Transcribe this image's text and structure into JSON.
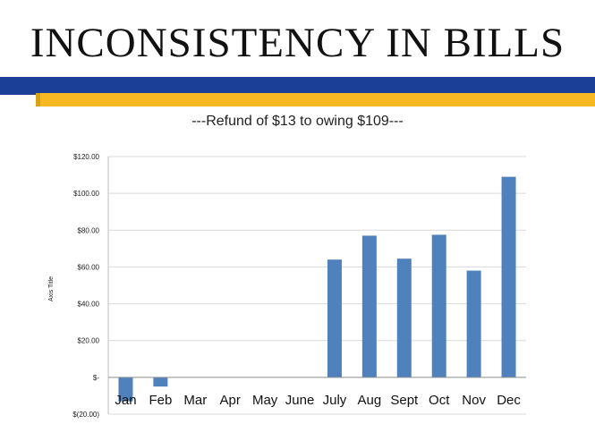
{
  "slide": {
    "title": "INCONSISTENCY IN BILLS",
    "subtitle": "---Refund of $13 to owing $109---"
  },
  "colors": {
    "band_blue": "#1b3f95",
    "band_gold": "#f8b822",
    "bar": "#4f81bd",
    "gridline": "#d9d9d9"
  },
  "chart_data": {
    "type": "bar",
    "categories": [
      "Jan",
      "Feb",
      "Mar",
      "Apr",
      "May",
      "June",
      "July",
      "Aug",
      "Sept",
      "Oct",
      "Nov",
      "Dec"
    ],
    "values": [
      -13,
      -5,
      0,
      0,
      0,
      0,
      64,
      77,
      64.5,
      77.5,
      58,
      109
    ],
    "title": "",
    "xlabel": "",
    "ylabel": "Axis Title",
    "ylim": [
      -20,
      120
    ],
    "yticks": [
      120,
      100,
      80,
      60,
      40,
      20,
      0,
      -20
    ],
    "ytick_labels": [
      "$120.00",
      "$100.00",
      "$80.00",
      "$60.00",
      "$40.00",
      "$20.00",
      "$-",
      "$(20.00)"
    ],
    "grid": true,
    "legend": "none"
  }
}
